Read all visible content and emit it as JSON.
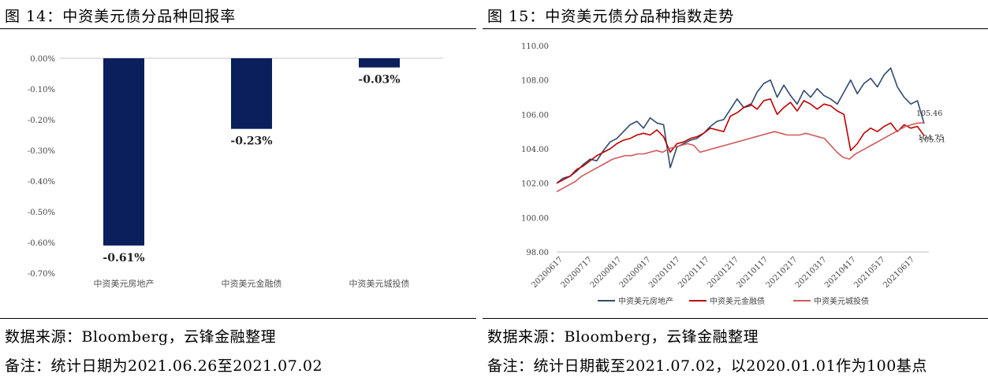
{
  "left": {
    "title": "图 14：中资美元债分品种回报率",
    "source": "数据来源：Bloomberg，云锋金融整理",
    "note": "备注：统计日期为2021.06.26至2021.07.02"
  },
  "right": {
    "title": "图 15：中资美元债分品种指数走势",
    "source": "数据来源：Bloomberg，云锋金融整理",
    "note": "备注：统计日期截至2021.07.02，以2020.01.01作为100基点"
  },
  "chart_data": [
    {
      "type": "bar",
      "categories": [
        "中资美元房地产",
        "中资美元金融债",
        "中资美元城投债"
      ],
      "values": [
        -0.61,
        -0.23,
        -0.03
      ],
      "value_labels": [
        "-0.61%",
        "-0.23%",
        "-0.03%"
      ],
      "ylim": [
        -0.7,
        0.0
      ],
      "yticks": [
        "0.00%",
        "-0.10%",
        "-0.20%",
        "-0.30%",
        "-0.40%",
        "-0.50%",
        "-0.60%",
        "-0.70%"
      ],
      "bar_color": "#0a1f5c",
      "grid": false
    },
    {
      "type": "line",
      "ylim": [
        98.0,
        110.0
      ],
      "yticks": [
        "98.00",
        "100.00",
        "102.00",
        "104.00",
        "106.00",
        "108.00",
        "110.00"
      ],
      "xticks": [
        "20200617",
        "20200717",
        "20200817",
        "20200917",
        "20201017",
        "20201117",
        "20201217",
        "20210117",
        "20210217",
        "20210317",
        "20210417",
        "20210517",
        "20210617"
      ],
      "legend_position": "bottom",
      "end_labels": [
        "105.46",
        "105.51",
        "104.75"
      ],
      "series": [
        {
          "name": "中资美元房地产",
          "color": "#2f4a6e",
          "values": [
            102.0,
            102.3,
            102.4,
            102.7,
            103.1,
            103.4,
            103.3,
            103.9,
            104.4,
            104.6,
            105.0,
            105.4,
            105.6,
            105.2,
            105.8,
            105.5,
            105.4,
            102.9,
            104.1,
            104.3,
            104.5,
            104.6,
            104.9,
            105.3,
            105.6,
            105.7,
            106.3,
            106.9,
            106.4,
            106.5,
            107.3,
            107.8,
            108.0,
            107.0,
            107.7,
            107.1,
            106.6,
            107.4,
            107.0,
            107.5,
            107.1,
            106.9,
            106.6,
            107.3,
            108.0,
            107.2,
            107.8,
            108.1,
            107.6,
            108.3,
            108.7,
            107.6,
            107.0,
            106.6,
            106.8,
            105.46
          ]
        },
        {
          "name": "中资美元金融债",
          "color": "#c00000",
          "values": [
            102.0,
            102.2,
            102.4,
            102.8,
            103.0,
            103.3,
            103.6,
            103.8,
            104.0,
            104.3,
            104.5,
            104.6,
            104.8,
            104.9,
            104.8,
            105.1,
            104.7,
            103.8,
            104.3,
            104.4,
            104.6,
            104.7,
            104.9,
            105.2,
            105.1,
            105.0,
            105.9,
            106.1,
            106.4,
            106.6,
            106.3,
            106.8,
            106.9,
            106.0,
            106.4,
            106.7,
            106.2,
            106.8,
            106.6,
            106.3,
            106.6,
            106.5,
            106.2,
            106.0,
            103.9,
            104.3,
            104.9,
            105.2,
            105.0,
            105.3,
            105.5,
            105.0,
            105.4,
            105.2,
            105.3,
            104.75
          ]
        },
        {
          "name": "中资美元城投债",
          "color": "#d05a5a",
          "values": [
            101.5,
            101.7,
            101.9,
            102.1,
            102.4,
            102.6,
            102.8,
            103.0,
            103.2,
            103.4,
            103.5,
            103.6,
            103.6,
            103.7,
            103.7,
            103.8,
            103.9,
            103.8,
            104.0,
            104.1,
            104.2,
            104.3,
            104.2,
            103.8,
            103.9,
            104.0,
            104.1,
            104.2,
            104.3,
            104.4,
            104.5,
            104.6,
            104.7,
            104.8,
            104.9,
            105.0,
            104.9,
            104.8,
            104.8,
            104.8,
            104.9,
            104.8,
            104.7,
            104.6,
            104.2,
            103.8,
            103.5,
            103.4,
            103.7,
            103.9,
            104.1,
            104.3,
            104.5,
            104.7,
            104.9,
            105.1,
            105.3,
            105.4,
            105.5,
            105.51
          ]
        }
      ]
    }
  ]
}
